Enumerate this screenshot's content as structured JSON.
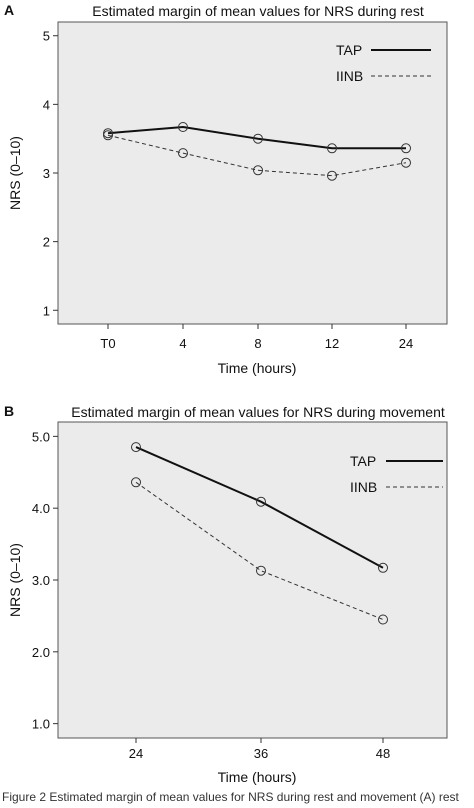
{
  "chart_data": [
    {
      "panel": "A",
      "type": "line",
      "title": "Estimated margin of mean values for NRS during rest",
      "xlabel": "Time (hours)",
      "ylabel": "NRS (0–10)",
      "categories": [
        "T0",
        "4",
        "8",
        "12",
        "24"
      ],
      "ylim": [
        0.8,
        5.2
      ],
      "yticks": [
        "1",
        "2",
        "3",
        "4",
        "5"
      ],
      "ytick_values": [
        1,
        2,
        3,
        4,
        5
      ],
      "grid": false,
      "legend_position": "top-right",
      "series": [
        {
          "name": "TAP",
          "values": [
            3.58,
            3.67,
            3.5,
            3.36,
            3.36
          ],
          "style": "solid"
        },
        {
          "name": "IINB",
          "values": [
            3.55,
            3.29,
            3.04,
            2.96,
            3.15
          ],
          "style": "dashed"
        }
      ],
      "background": "#ebebeb"
    },
    {
      "panel": "B",
      "type": "line",
      "title": "Estimated margin of mean values for NRS during movement",
      "xlabel": "Time (hours)",
      "ylabel": "NRS (0–10)",
      "categories": [
        "24",
        "36",
        "48"
      ],
      "ylim": [
        0.8,
        5.2
      ],
      "yticks": [
        "1.0",
        "2.0",
        "3.0",
        "4.0",
        "5.0"
      ],
      "ytick_values": [
        1,
        2,
        3,
        4,
        5
      ],
      "grid": false,
      "legend_position": "top-right",
      "series": [
        {
          "name": "TAP",
          "values": [
            4.85,
            4.09,
            3.17
          ],
          "style": "solid"
        },
        {
          "name": "IINB",
          "values": [
            4.36,
            3.13,
            2.45
          ],
          "style": "dashed"
        }
      ],
      "background": "#ebebeb"
    }
  ],
  "caption": "Figure 2 Estimated margin of mean values for NRS during rest and movement (A) rest"
}
